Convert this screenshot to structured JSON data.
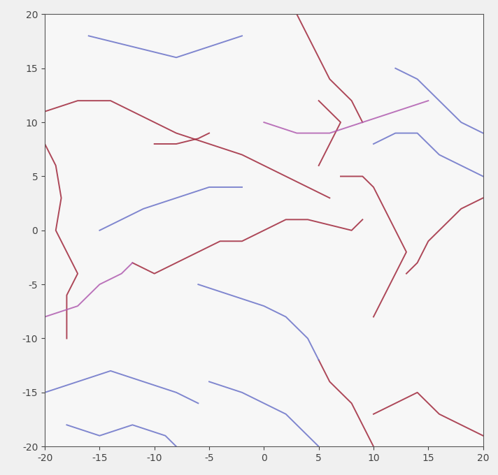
{
  "chart_data": {
    "type": "line",
    "xlim": [
      -20,
      20
    ],
    "ylim": [
      -20,
      20
    ],
    "xticks": [
      -20,
      -15,
      -10,
      -5,
      0,
      5,
      10,
      15,
      20
    ],
    "yticks": [
      -20,
      -15,
      -10,
      -5,
      0,
      5,
      10,
      15,
      20
    ],
    "grid": false,
    "series": [
      {
        "color": "#a0283c",
        "x": [
          -20,
          -19,
          -18.5,
          -19,
          -18,
          -17,
          -18,
          -18,
          -18
        ],
        "y": [
          8,
          6,
          3,
          0,
          -2,
          -4,
          -6,
          -8,
          -10
        ]
      },
      {
        "color": "#a0283c",
        "x": [
          -20,
          -17,
          -14,
          -12,
          -10,
          -8,
          -5,
          -2,
          0,
          2,
          4,
          6
        ],
        "y": [
          11,
          12,
          12,
          11,
          10,
          9,
          8,
          7,
          6,
          5,
          4,
          3
        ]
      },
      {
        "color": "#a0283c",
        "x": [
          -10,
          -8,
          -6,
          -5
        ],
        "y": [
          8,
          8,
          8.5,
          9
        ]
      },
      {
        "color": "#a0283c",
        "x": [
          -12,
          -10,
          -8,
          -6,
          -4,
          -2,
          0,
          2,
          4,
          6,
          8,
          9
        ],
        "y": [
          -3,
          -4,
          -3,
          -2,
          -1,
          -1,
          0,
          1,
          1,
          0.5,
          0,
          1
        ]
      },
      {
        "color": "#a0283c",
        "x": [
          7,
          9,
          10,
          11,
          12,
          13,
          12,
          11,
          10
        ],
        "y": [
          5,
          5,
          4,
          2,
          0,
          -2,
          -4,
          -6,
          -8
        ]
      },
      {
        "color": "#a0283c",
        "x": [
          13,
          14,
          15,
          16,
          17,
          18,
          20
        ],
        "y": [
          -4,
          -3,
          -1,
          0,
          1,
          2,
          3
        ]
      },
      {
        "color": "#a0283c",
        "x": [
          3,
          4,
          5,
          6,
          7,
          8,
          9
        ],
        "y": [
          20,
          18,
          16,
          14,
          13,
          12,
          10
        ]
      },
      {
        "color": "#a0283c",
        "x": [
          5,
          6,
          7,
          6,
          5
        ],
        "y": [
          12,
          11,
          10,
          8,
          6
        ]
      },
      {
        "color": "#a0283c",
        "x": [
          5,
          6,
          8,
          9,
          10
        ],
        "y": [
          -12,
          -14,
          -16,
          -18,
          -20
        ]
      },
      {
        "color": "#a0283c",
        "x": [
          10,
          12,
          14,
          16,
          18,
          20
        ],
        "y": [
          -17,
          -16,
          -15,
          -17,
          -18,
          -19
        ]
      },
      {
        "color": "#6a72c8",
        "x": [
          -20,
          -17,
          -14,
          -11,
          -8,
          -6
        ],
        "y": [
          -15,
          -14,
          -13,
          -14,
          -15,
          -16
        ]
      },
      {
        "color": "#6a72c8",
        "x": [
          -5,
          -2,
          0,
          2,
          4,
          5
        ],
        "y": [
          -14,
          -15,
          -16,
          -17,
          -19,
          -20
        ]
      },
      {
        "color": "#6a72c8",
        "x": [
          -16,
          -12,
          -8,
          -5,
          -2
        ],
        "y": [
          18,
          17,
          16,
          17,
          18
        ]
      },
      {
        "color": "#6a72c8",
        "x": [
          12,
          14,
          16,
          18,
          20
        ],
        "y": [
          15,
          14,
          12,
          10,
          9
        ]
      },
      {
        "color": "#6a72c8",
        "x": [
          -6,
          -3,
          0,
          2,
          4,
          5
        ],
        "y": [
          -5,
          -6,
          -7,
          -8,
          -10,
          -12
        ]
      },
      {
        "color": "#6a72c8",
        "x": [
          10,
          12,
          14,
          16,
          18,
          20
        ],
        "y": [
          8,
          9,
          9,
          7,
          6,
          5
        ]
      },
      {
        "color": "#6a72c8",
        "x": [
          -15,
          -13,
          -11,
          -8,
          -5,
          -2
        ],
        "y": [
          0,
          1,
          2,
          3,
          4,
          4
        ]
      },
      {
        "color": "#6a72c8",
        "x": [
          -18,
          -15,
          -12,
          -9,
          -8
        ],
        "y": [
          -18,
          -19,
          -18,
          -19,
          -20
        ]
      },
      {
        "color": "#b05cb0",
        "x": [
          -20,
          -17,
          -15,
          -13,
          -12
        ],
        "y": [
          -8,
          -7,
          -5,
          -4,
          -3
        ]
      },
      {
        "color": "#b05cb0",
        "x": [
          0,
          3,
          6,
          9,
          12,
          15
        ],
        "y": [
          10,
          9,
          9,
          10,
          11,
          12
        ]
      }
    ]
  }
}
